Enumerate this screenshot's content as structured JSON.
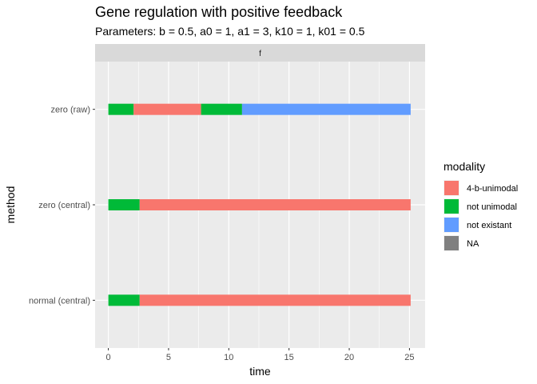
{
  "chart_data": {
    "type": "bar",
    "orientation": "horizontal-segments",
    "title": "Gene regulation with positive feedback",
    "subtitle": "Parameters: b = 0.5, a0 = 1, a1 = 3, k10 = 1, k01 = 0.5",
    "facet_label": "f",
    "xlabel": "time",
    "ylabel": "method",
    "xlim": [
      -1.1,
      26.3
    ],
    "xticks": [
      0,
      5,
      10,
      15,
      20,
      25
    ],
    "grid": true,
    "categories": [
      "zero (raw)",
      "zero (central)",
      "normal (central)"
    ],
    "legend": {
      "title": "modality",
      "position": "right",
      "entries": [
        {
          "label": "4-b-unimodal",
          "color": "#F8766D"
        },
        {
          "label": "not unimodal",
          "color": "#00BA38"
        },
        {
          "label": "not existant",
          "color": "#619CFF"
        },
        {
          "label": "NA",
          "color": "#808080"
        }
      ]
    },
    "series": [
      {
        "category": "zero (raw)",
        "segments": [
          {
            "start": 0,
            "end": 2.1,
            "modality": "not unimodal"
          },
          {
            "start": 2.1,
            "end": 7.7,
            "modality": "4-b-unimodal"
          },
          {
            "start": 7.7,
            "end": 11.1,
            "modality": "not unimodal"
          },
          {
            "start": 11.1,
            "end": 25.1,
            "modality": "not existant"
          }
        ]
      },
      {
        "category": "zero (central)",
        "segments": [
          {
            "start": 0,
            "end": 2.6,
            "modality": "not unimodal"
          },
          {
            "start": 2.6,
            "end": 25.1,
            "modality": "4-b-unimodal"
          }
        ]
      },
      {
        "category": "normal (central)",
        "segments": [
          {
            "start": 0,
            "end": 2.6,
            "modality": "not unimodal"
          },
          {
            "start": 2.6,
            "end": 25.1,
            "modality": "4-b-unimodal"
          }
        ]
      }
    ]
  }
}
